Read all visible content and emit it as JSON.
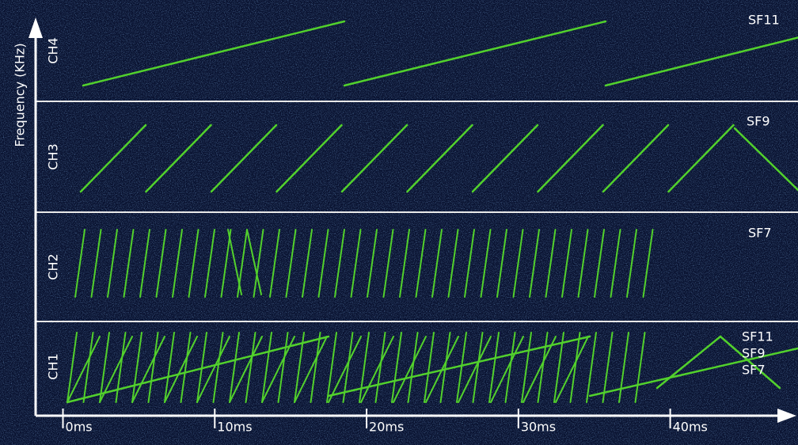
{
  "chart_data": {
    "type": "spectrogram",
    "y_label": "Frequency (KHz)",
    "xlim": [
      -1.8,
      48
    ],
    "xticks": [
      {
        "value": 0,
        "label": "0ms"
      },
      {
        "value": 10,
        "label": "10ms"
      },
      {
        "value": 20,
        "label": "20ms"
      },
      {
        "value": 30,
        "label": "30ms"
      },
      {
        "value": 40,
        "label": "40ms"
      }
    ],
    "channels": [
      {
        "label": "CH4",
        "sf_labels": [
          "SF11"
        ]
      },
      {
        "label": "CH3",
        "sf_labels": [
          "SF9"
        ]
      },
      {
        "label": "CH2",
        "sf_labels": [
          "SF7"
        ]
      },
      {
        "label": "CH1",
        "sf_labels": [
          "SF11",
          "SF9",
          "SF7"
        ]
      }
    ]
  }
}
